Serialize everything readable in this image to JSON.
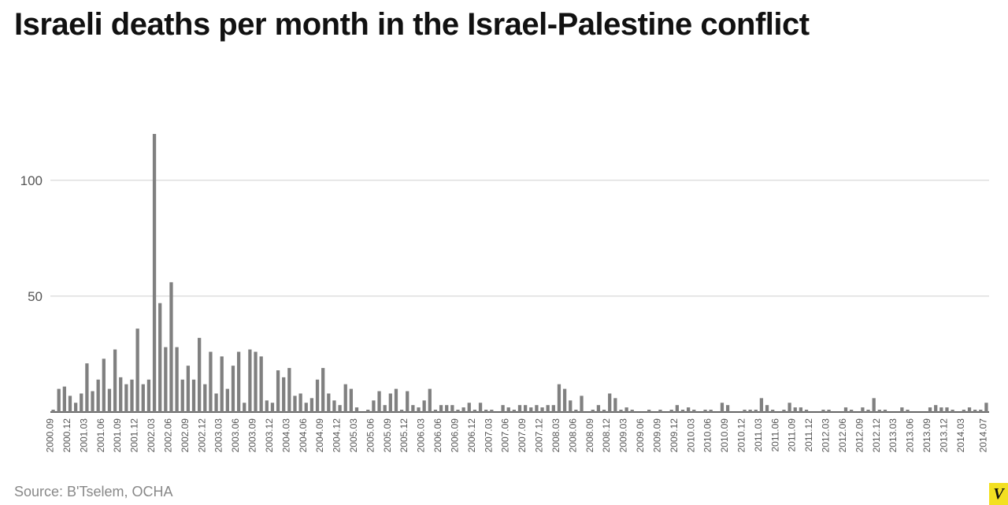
{
  "title": "Israeli deaths per month in the Israel-Palestine conflict",
  "source_text": "Source: B'Tselem, OCHA",
  "logo_letter": "V",
  "logo_bg": "#f3e021",
  "chart": {
    "type": "bar",
    "background_color": "#ffffff",
    "bar_color": "#808080",
    "grid_color": "#cfcfcf",
    "axis_color": "#333333",
    "tick_label_color": "#555555",
    "ylim": [
      0,
      120
    ],
    "yticks": [
      50,
      100
    ],
    "ytick_fontsize": 17,
    "xtick_fontsize": 12,
    "bar_width_ratio": 0.6,
    "categories_visible": [
      "2000.09",
      "2000.12",
      "2001.03",
      "2001.06",
      "2001.09",
      "2001.12",
      "2002.03",
      "2002.06",
      "2002.09",
      "2002.12",
      "2003.03",
      "2003.06",
      "2003.09",
      "2003.12",
      "2004.03",
      "2004.06",
      "2004.09",
      "2004.12",
      "2005.03",
      "2005.06",
      "2005.09",
      "2005.12",
      "2006.03",
      "2006.06",
      "2006.09",
      "2006.12",
      "2007.03",
      "2007.06",
      "2007.09",
      "2007.12",
      "2008.03",
      "2008.06",
      "2008.09",
      "2008.12",
      "2009.03",
      "2009.06",
      "2009.09",
      "2009.12",
      "2010.03",
      "2010.06",
      "2010.09",
      "2010.12",
      "2011.03",
      "2011.06",
      "2011.09",
      "2011.12",
      "2012.03",
      "2012.06",
      "2012.09",
      "2012.12",
      "2013.03",
      "2013.06",
      "2013.09",
      "2013.12",
      "2014.03",
      "2014.07"
    ],
    "data": [
      {
        "month": "2000.09",
        "v": 1
      },
      {
        "month": "2000.10",
        "v": 10
      },
      {
        "month": "2000.11",
        "v": 11
      },
      {
        "month": "2000.12",
        "v": 7
      },
      {
        "month": "2001.01",
        "v": 4
      },
      {
        "month": "2001.02",
        "v": 8
      },
      {
        "month": "2001.03",
        "v": 21
      },
      {
        "month": "2001.04",
        "v": 9
      },
      {
        "month": "2001.05",
        "v": 14
      },
      {
        "month": "2001.06",
        "v": 23
      },
      {
        "month": "2001.07",
        "v": 10
      },
      {
        "month": "2001.08",
        "v": 27
      },
      {
        "month": "2001.09",
        "v": 15
      },
      {
        "month": "2001.10",
        "v": 12
      },
      {
        "month": "2001.11",
        "v": 14
      },
      {
        "month": "2001.12",
        "v": 36
      },
      {
        "month": "2002.01",
        "v": 12
      },
      {
        "month": "2002.02",
        "v": 14
      },
      {
        "month": "2002.03",
        "v": 120
      },
      {
        "month": "2002.04",
        "v": 47
      },
      {
        "month": "2002.05",
        "v": 28
      },
      {
        "month": "2002.06",
        "v": 56
      },
      {
        "month": "2002.07",
        "v": 28
      },
      {
        "month": "2002.08",
        "v": 14
      },
      {
        "month": "2002.09",
        "v": 20
      },
      {
        "month": "2002.10",
        "v": 14
      },
      {
        "month": "2002.11",
        "v": 32
      },
      {
        "month": "2002.12",
        "v": 12
      },
      {
        "month": "2003.01",
        "v": 26
      },
      {
        "month": "2003.02",
        "v": 8
      },
      {
        "month": "2003.03",
        "v": 24
      },
      {
        "month": "2003.04",
        "v": 10
      },
      {
        "month": "2003.05",
        "v": 20
      },
      {
        "month": "2003.06",
        "v": 26
      },
      {
        "month": "2003.07",
        "v": 4
      },
      {
        "month": "2003.08",
        "v": 27
      },
      {
        "month": "2003.09",
        "v": 26
      },
      {
        "month": "2003.10",
        "v": 24
      },
      {
        "month": "2003.11",
        "v": 5
      },
      {
        "month": "2003.12",
        "v": 4
      },
      {
        "month": "2004.01",
        "v": 18
      },
      {
        "month": "2004.02",
        "v": 15
      },
      {
        "month": "2004.03",
        "v": 19
      },
      {
        "month": "2004.04",
        "v": 7
      },
      {
        "month": "2004.05",
        "v": 8
      },
      {
        "month": "2004.06",
        "v": 4
      },
      {
        "month": "2004.07",
        "v": 6
      },
      {
        "month": "2004.08",
        "v": 14
      },
      {
        "month": "2004.09",
        "v": 19
      },
      {
        "month": "2004.10",
        "v": 8
      },
      {
        "month": "2004.11",
        "v": 5
      },
      {
        "month": "2004.12",
        "v": 3
      },
      {
        "month": "2005.01",
        "v": 12
      },
      {
        "month": "2005.02",
        "v": 10
      },
      {
        "month": "2005.03",
        "v": 2
      },
      {
        "month": "2005.04",
        "v": 0
      },
      {
        "month": "2005.05",
        "v": 1
      },
      {
        "month": "2005.06",
        "v": 5
      },
      {
        "month": "2005.07",
        "v": 9
      },
      {
        "month": "2005.08",
        "v": 3
      },
      {
        "month": "2005.09",
        "v": 8
      },
      {
        "month": "2005.10",
        "v": 10
      },
      {
        "month": "2005.11",
        "v": 1
      },
      {
        "month": "2005.12",
        "v": 9
      },
      {
        "month": "2006.01",
        "v": 3
      },
      {
        "month": "2006.02",
        "v": 2
      },
      {
        "month": "2006.03",
        "v": 5
      },
      {
        "month": "2006.04",
        "v": 10
      },
      {
        "month": "2006.05",
        "v": 1
      },
      {
        "month": "2006.06",
        "v": 3
      },
      {
        "month": "2006.07",
        "v": 3
      },
      {
        "month": "2006.08",
        "v": 3
      },
      {
        "month": "2006.09",
        "v": 1
      },
      {
        "month": "2006.10",
        "v": 2
      },
      {
        "month": "2006.11",
        "v": 4
      },
      {
        "month": "2006.12",
        "v": 1
      },
      {
        "month": "2007.01",
        "v": 4
      },
      {
        "month": "2007.02",
        "v": 1
      },
      {
        "month": "2007.03",
        "v": 1
      },
      {
        "month": "2007.04",
        "v": 0
      },
      {
        "month": "2007.05",
        "v": 3
      },
      {
        "month": "2007.06",
        "v": 2
      },
      {
        "month": "2007.07",
        "v": 1
      },
      {
        "month": "2007.08",
        "v": 3
      },
      {
        "month": "2007.09",
        "v": 3
      },
      {
        "month": "2007.10",
        "v": 2
      },
      {
        "month": "2007.11",
        "v": 3
      },
      {
        "month": "2007.12",
        "v": 2
      },
      {
        "month": "2008.01",
        "v": 3
      },
      {
        "month": "2008.02",
        "v": 3
      },
      {
        "month": "2008.03",
        "v": 12
      },
      {
        "month": "2008.04",
        "v": 10
      },
      {
        "month": "2008.05",
        "v": 5
      },
      {
        "month": "2008.06",
        "v": 1
      },
      {
        "month": "2008.07",
        "v": 7
      },
      {
        "month": "2008.08",
        "v": 0
      },
      {
        "month": "2008.09",
        "v": 1
      },
      {
        "month": "2008.10",
        "v": 3
      },
      {
        "month": "2008.11",
        "v": 1
      },
      {
        "month": "2008.12",
        "v": 8
      },
      {
        "month": "2009.01",
        "v": 6
      },
      {
        "month": "2009.02",
        "v": 1
      },
      {
        "month": "2009.03",
        "v": 2
      },
      {
        "month": "2009.04",
        "v": 1
      },
      {
        "month": "2009.05",
        "v": 0
      },
      {
        "month": "2009.06",
        "v": 0
      },
      {
        "month": "2009.07",
        "v": 1
      },
      {
        "month": "2009.08",
        "v": 0
      },
      {
        "month": "2009.09",
        "v": 1
      },
      {
        "month": "2009.10",
        "v": 0
      },
      {
        "month": "2009.11",
        "v": 1
      },
      {
        "month": "2009.12",
        "v": 3
      },
      {
        "month": "2010.01",
        "v": 1
      },
      {
        "month": "2010.02",
        "v": 2
      },
      {
        "month": "2010.03",
        "v": 1
      },
      {
        "month": "2010.04",
        "v": 0
      },
      {
        "month": "2010.05",
        "v": 1
      },
      {
        "month": "2010.06",
        "v": 1
      },
      {
        "month": "2010.07",
        "v": 0
      },
      {
        "month": "2010.08",
        "v": 4
      },
      {
        "month": "2010.09",
        "v": 3
      },
      {
        "month": "2010.10",
        "v": 0
      },
      {
        "month": "2010.11",
        "v": 0
      },
      {
        "month": "2010.12",
        "v": 1
      },
      {
        "month": "2011.01",
        "v": 1
      },
      {
        "month": "2011.02",
        "v": 1
      },
      {
        "month": "2011.03",
        "v": 6
      },
      {
        "month": "2011.04",
        "v": 3
      },
      {
        "month": "2011.05",
        "v": 1
      },
      {
        "month": "2011.06",
        "v": 0
      },
      {
        "month": "2011.07",
        "v": 1
      },
      {
        "month": "2011.08",
        "v": 4
      },
      {
        "month": "2011.09",
        "v": 2
      },
      {
        "month": "2011.10",
        "v": 2
      },
      {
        "month": "2011.11",
        "v": 1
      },
      {
        "month": "2011.12",
        "v": 0
      },
      {
        "month": "2012.01",
        "v": 0
      },
      {
        "month": "2012.02",
        "v": 1
      },
      {
        "month": "2012.03",
        "v": 1
      },
      {
        "month": "2012.04",
        "v": 0
      },
      {
        "month": "2012.05",
        "v": 0
      },
      {
        "month": "2012.06",
        "v": 2
      },
      {
        "month": "2012.07",
        "v": 1
      },
      {
        "month": "2012.08",
        "v": 0
      },
      {
        "month": "2012.09",
        "v": 2
      },
      {
        "month": "2012.10",
        "v": 1
      },
      {
        "month": "2012.11",
        "v": 6
      },
      {
        "month": "2012.12",
        "v": 1
      },
      {
        "month": "2013.01",
        "v": 1
      },
      {
        "month": "2013.02",
        "v": 0
      },
      {
        "month": "2013.03",
        "v": 0
      },
      {
        "month": "2013.04",
        "v": 2
      },
      {
        "month": "2013.05",
        "v": 1
      },
      {
        "month": "2013.06",
        "v": 0
      },
      {
        "month": "2013.07",
        "v": 0
      },
      {
        "month": "2013.08",
        "v": 0
      },
      {
        "month": "2013.09",
        "v": 2
      },
      {
        "month": "2013.10",
        "v": 3
      },
      {
        "month": "2013.11",
        "v": 2
      },
      {
        "month": "2013.12",
        "v": 2
      },
      {
        "month": "2014.01",
        "v": 1
      },
      {
        "month": "2014.02",
        "v": 0
      },
      {
        "month": "2014.03",
        "v": 1
      },
      {
        "month": "2014.04",
        "v": 2
      },
      {
        "month": "2014.05",
        "v": 1
      },
      {
        "month": "2014.06",
        "v": 1
      },
      {
        "month": "2014.07",
        "v": 4
      }
    ]
  }
}
